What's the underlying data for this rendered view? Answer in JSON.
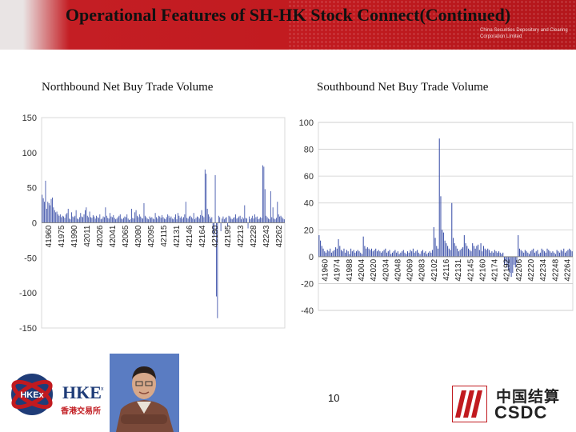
{
  "slide": {
    "title": "Operational Features of SH-HK Stock Connect(Continued)",
    "page_number": "10",
    "csdc_english": "China Securities Depository and Clearing Corporation Limited",
    "logos": {
      "hkex_mark": "HKEx",
      "hkex_text": "HKE",
      "hkex_superscript": "x",
      "hkex_chinese": "香港交易所",
      "csdc_chinese": "中国结算",
      "csdc_abbr": "CSDC"
    },
    "colors": {
      "banner_red": "#c11a1f",
      "bar_blue": "#3a4fa8",
      "grid": "#cccccc"
    }
  },
  "chart_data": [
    {
      "type": "bar",
      "title": "Northbound Net Buy Trade Volume",
      "ylim": [
        -150,
        150
      ],
      "yticks": [
        150,
        100,
        50,
        0,
        -50,
        -100,
        -150
      ],
      "ytick_labels": [
        "150",
        "100",
        "50",
        "0",
        "-50",
        "-100",
        "-150"
      ],
      "x_tick_labels": [
        "41960",
        "41975",
        "41990",
        "42011",
        "42026",
        "42041",
        "42065",
        "42080",
        "42095",
        "42115",
        "42131",
        "42146",
        "42164",
        "42180",
        "42195",
        "42213",
        "42228",
        "42243",
        "42262"
      ],
      "grid": false,
      "values": [
        40,
        35,
        30,
        60,
        20,
        30,
        28,
        25,
        34,
        36,
        22,
        18,
        15,
        16,
        12,
        10,
        12,
        8,
        10,
        9,
        7,
        12,
        14,
        20,
        6,
        5,
        15,
        9,
        8,
        10,
        18,
        6,
        5,
        8,
        14,
        9,
        8,
        12,
        18,
        22,
        10,
        8,
        16,
        8,
        7,
        11,
        9,
        6,
        10,
        8,
        7,
        12,
        5,
        6,
        9,
        8,
        22,
        10,
        7,
        6,
        14,
        9,
        8,
        11,
        7,
        5,
        6,
        8,
        10,
        12,
        6,
        5,
        7,
        9,
        8,
        12,
        6,
        4,
        5,
        20,
        7,
        6,
        15,
        18,
        10,
        8,
        12,
        9,
        7,
        6,
        28,
        10,
        8,
        6,
        5,
        9,
        7,
        8,
        6,
        5,
        14,
        8,
        6,
        10,
        9,
        7,
        11,
        8,
        6,
        5,
        8,
        12,
        10,
        7,
        9,
        6,
        5,
        8,
        12,
        5,
        14,
        10,
        7,
        9,
        6,
        8,
        12,
        30,
        7,
        6,
        9,
        10,
        8,
        6,
        14,
        5,
        7,
        9,
        8,
        6,
        11,
        18,
        10,
        8,
        76,
        70,
        20,
        12,
        9,
        6,
        8,
        -15,
        -20,
        68,
        -105,
        -136,
        10,
        8,
        -12,
        6,
        9,
        5,
        7,
        8,
        -5,
        10,
        9,
        6,
        5,
        7,
        8,
        12,
        6,
        7,
        9,
        10,
        5,
        8,
        6,
        25,
        7,
        6,
        -8,
        9,
        5,
        7,
        10,
        6,
        12,
        8,
        9,
        5,
        6,
        8,
        7,
        82,
        80,
        48,
        10,
        8,
        6,
        5,
        45,
        8,
        22,
        6,
        5,
        7,
        30,
        12,
        9,
        10,
        8,
        6,
        5
      ]
    },
    {
      "type": "bar",
      "title": "Southbound  Net Buy Trade Volume",
      "ylim": [
        -40,
        100
      ],
      "yticks": [
        100,
        80,
        60,
        40,
        20,
        0,
        -20,
        -40
      ],
      "ytick_labels": [
        "100",
        "80",
        "60",
        "40",
        "20",
        "0",
        "-20",
        "-40"
      ],
      "x_tick_labels": [
        "41960",
        "41974",
        "41988",
        "42004",
        "42020",
        "42034",
        "42048",
        "42069",
        "42083",
        "42102",
        "42116",
        "42131",
        "42145",
        "42160",
        "42174",
        "42192",
        "42206",
        "42220",
        "42234",
        "42248",
        "42264"
      ],
      "grid": true,
      "values": [
        16,
        12,
        8,
        6,
        4,
        3,
        5,
        4,
        6,
        3,
        4,
        5,
        7,
        6,
        13,
        8,
        5,
        4,
        6,
        3,
        5,
        4,
        2,
        6,
        4,
        5,
        3,
        4,
        5,
        4,
        3,
        2,
        15,
        8,
        6,
        7,
        6,
        5,
        6,
        4,
        5,
        6,
        4,
        5,
        4,
        3,
        4,
        5,
        6,
        3,
        4,
        5,
        2,
        3,
        4,
        5,
        3,
        4,
        2,
        3,
        4,
        5,
        3,
        2,
        4,
        3,
        5,
        4,
        6,
        3,
        4,
        5,
        3,
        2,
        4,
        5,
        3,
        4,
        2,
        3,
        4,
        3,
        5,
        22,
        14,
        8,
        6,
        88,
        45,
        20,
        18,
        12,
        10,
        8,
        6,
        5,
        40,
        14,
        10,
        8,
        6,
        4,
        5,
        6,
        7,
        16,
        10,
        8,
        6,
        5,
        4,
        10,
        8,
        6,
        8,
        9,
        5,
        10,
        4,
        8,
        6,
        5,
        6,
        5,
        3,
        4,
        3,
        5,
        4,
        3,
        4,
        3,
        2,
        3,
        -6,
        -4,
        -8,
        -10,
        -12,
        -15,
        -12,
        -6,
        -8,
        -5,
        16,
        6,
        5,
        4,
        3,
        5,
        4,
        3,
        2,
        4,
        5,
        6,
        3,
        4,
        5,
        2,
        3,
        6,
        5,
        4,
        3,
        6,
        5,
        4,
        3,
        4,
        3,
        2,
        5,
        4,
        3,
        5,
        4,
        6,
        3,
        4,
        5,
        6,
        5,
        4
      ]
    }
  ]
}
